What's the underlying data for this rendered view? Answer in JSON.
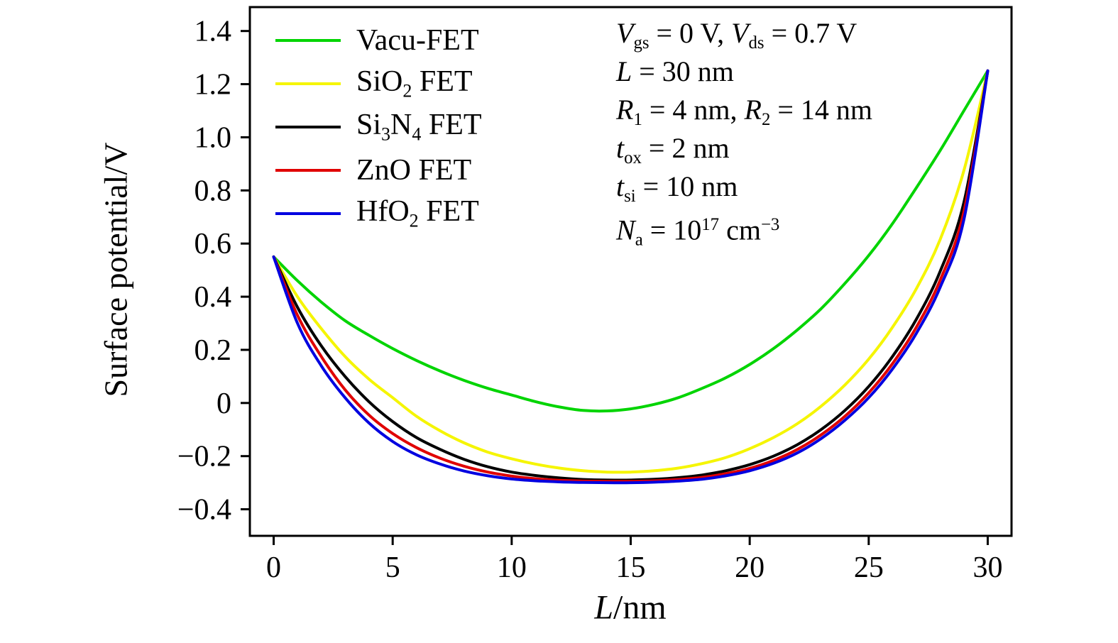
{
  "chart_data": {
    "type": "line",
    "title": "",
    "xlabel": "L/nm",
    "xlabel_segments": [
      {
        "t": "L",
        "s": "var"
      },
      {
        "t": "/nm",
        "s": "n"
      }
    ],
    "ylabel": "Surface potential/V",
    "xlim": [
      -1,
      31
    ],
    "ylim": [
      -0.5,
      1.49
    ],
    "grid": false,
    "legend_position": "top-left",
    "axis_color": "#000000",
    "xticks": [
      0,
      5,
      10,
      15,
      20,
      25,
      30
    ],
    "xtick_labels": [
      "0",
      "5",
      "10",
      "15",
      "20",
      "25",
      "30"
    ],
    "yticks": [
      -0.4,
      -0.2,
      0,
      0.2,
      0.4,
      0.6,
      0.8,
      1.0,
      1.2,
      1.4
    ],
    "ytick_labels": [
      "−0.4",
      "−0.2",
      "0",
      "0.2",
      "0.4",
      "0.6",
      "0.8",
      "1.0",
      "1.2",
      "1.4"
    ],
    "x": [
      0,
      1,
      2,
      3,
      4,
      5,
      6,
      7,
      8,
      9,
      10,
      11,
      12,
      13,
      14,
      15,
      16,
      17,
      18,
      19,
      20,
      21,
      22,
      23,
      24,
      25,
      26,
      27,
      28,
      29,
      30
    ],
    "series": [
      {
        "id": "vacu-fet",
        "name": "Vacu-FET",
        "label_segments": [
          {
            "t": "Vacu-FET",
            "s": "n"
          }
        ],
        "color": "#00d400",
        "values": [
          0.55,
          0.46,
          0.38,
          0.31,
          0.255,
          0.205,
          0.16,
          0.12,
          0.085,
          0.055,
          0.03,
          0.005,
          -0.015,
          -0.028,
          -0.03,
          -0.022,
          -0.005,
          0.02,
          0.055,
          0.095,
          0.145,
          0.205,
          0.275,
          0.355,
          0.45,
          0.555,
          0.675,
          0.81,
          0.95,
          1.1,
          1.25
        ]
      },
      {
        "id": "sio2-fet",
        "name": "SiO2 FET",
        "label_segments": [
          {
            "t": "SiO",
            "s": "n"
          },
          {
            "t": "2",
            "s": "sub"
          },
          {
            "t": " FET",
            "s": "n"
          }
        ],
        "color": "#f5f500",
        "values": [
          0.55,
          0.4,
          0.28,
          0.175,
          0.09,
          0.02,
          -0.05,
          -0.105,
          -0.15,
          -0.185,
          -0.21,
          -0.23,
          -0.245,
          -0.255,
          -0.26,
          -0.26,
          -0.255,
          -0.245,
          -0.228,
          -0.205,
          -0.172,
          -0.13,
          -0.078,
          -0.012,
          0.068,
          0.165,
          0.285,
          0.43,
          0.615,
          0.875,
          1.25
        ]
      },
      {
        "id": "si3n4-fet",
        "name": "Si3N4 FET",
        "label_segments": [
          {
            "t": "Si",
            "s": "n"
          },
          {
            "t": "3",
            "s": "sub"
          },
          {
            "t": "N",
            "s": "n"
          },
          {
            "t": "4",
            "s": "sub"
          },
          {
            "t": " FET",
            "s": "n"
          }
        ],
        "color": "#000000",
        "values": [
          0.55,
          0.36,
          0.215,
          0.1,
          0.005,
          -0.07,
          -0.13,
          -0.175,
          -0.212,
          -0.24,
          -0.26,
          -0.273,
          -0.282,
          -0.288,
          -0.29,
          -0.29,
          -0.287,
          -0.281,
          -0.271,
          -0.255,
          -0.232,
          -0.2,
          -0.157,
          -0.1,
          -0.028,
          0.062,
          0.175,
          0.315,
          0.495,
          0.755,
          1.25
        ]
      },
      {
        "id": "zno-fet",
        "name": "ZnO FET",
        "label_segments": [
          {
            "t": "ZnO FET",
            "s": "n"
          }
        ],
        "color": "#e00000",
        "values": [
          0.55,
          0.33,
          0.175,
          0.05,
          -0.045,
          -0.115,
          -0.168,
          -0.208,
          -0.238,
          -0.26,
          -0.275,
          -0.285,
          -0.291,
          -0.294,
          -0.295,
          -0.295,
          -0.293,
          -0.288,
          -0.28,
          -0.266,
          -0.246,
          -0.216,
          -0.175,
          -0.12,
          -0.05,
          0.038,
          0.148,
          0.285,
          0.462,
          0.72,
          1.25
        ]
      },
      {
        "id": "hfo2-fet",
        "name": "HfO2 FET",
        "label_segments": [
          {
            "t": "HfO",
            "s": "n"
          },
          {
            "t": "2",
            "s": "sub"
          },
          {
            "t": " FET",
            "s": "n"
          }
        ],
        "color": "#0000e0",
        "values": [
          0.55,
          0.3,
          0.14,
          0.02,
          -0.075,
          -0.145,
          -0.195,
          -0.23,
          -0.256,
          -0.274,
          -0.286,
          -0.293,
          -0.297,
          -0.299,
          -0.3,
          -0.3,
          -0.298,
          -0.294,
          -0.287,
          -0.274,
          -0.255,
          -0.227,
          -0.188,
          -0.134,
          -0.065,
          0.02,
          0.128,
          0.262,
          0.435,
          0.69,
          1.25
        ]
      }
    ],
    "annotation_lines": [
      {
        "segments": [
          {
            "t": "V",
            "s": "var"
          },
          {
            "t": "gs",
            "s": "sub"
          },
          {
            "t": " = 0 V, ",
            "s": "n"
          },
          {
            "t": "V",
            "s": "var"
          },
          {
            "t": "ds",
            "s": "sub"
          },
          {
            "t": " = 0.7 V",
            "s": "n"
          }
        ]
      },
      {
        "segments": [
          {
            "t": "L",
            "s": "var"
          },
          {
            "t": " = 30 nm",
            "s": "n"
          }
        ]
      },
      {
        "segments": [
          {
            "t": "R",
            "s": "var"
          },
          {
            "t": "1",
            "s": "sub"
          },
          {
            "t": " = 4 nm, ",
            "s": "n"
          },
          {
            "t": "R",
            "s": "var"
          },
          {
            "t": "2",
            "s": "sub"
          },
          {
            "t": " = 14 nm",
            "s": "n"
          }
        ]
      },
      {
        "segments": [
          {
            "t": "t",
            "s": "var"
          },
          {
            "t": "ox",
            "s": "sub"
          },
          {
            "t": " = 2 nm",
            "s": "n"
          }
        ]
      },
      {
        "segments": [
          {
            "t": "t",
            "s": "var"
          },
          {
            "t": "si",
            "s": "sub"
          },
          {
            "t": " = 10 nm",
            "s": "n"
          }
        ]
      },
      {
        "segments": [
          {
            "t": "N",
            "s": "var"
          },
          {
            "t": "a",
            "s": "sub"
          },
          {
            "t": " = 10",
            "s": "n"
          },
          {
            "t": "17",
            "s": "sup"
          },
          {
            "t": " cm",
            "s": "n"
          },
          {
            "t": "−3",
            "s": "sup"
          }
        ]
      }
    ]
  }
}
